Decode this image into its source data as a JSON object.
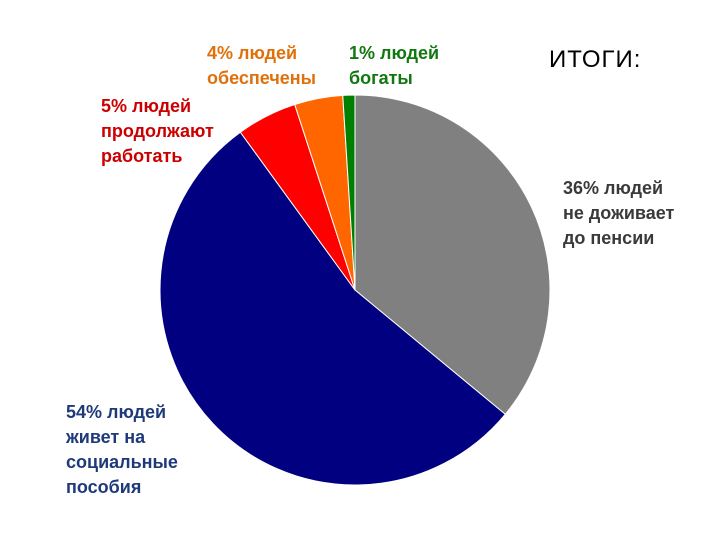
{
  "chart_data": {
    "type": "pie",
    "title": "ИТОГИ:",
    "start_angle_deg": 0,
    "direction": "clockwise",
    "slices": [
      {
        "value": 36,
        "label": "36% людей\nне доживает\nдо пенсии",
        "color": "#808080",
        "label_color": "#3a3a3a"
      },
      {
        "value": 54,
        "label": "54% людей\nживет на\nсоциальные\nпособия",
        "color": "#000080",
        "label_color": "#1f3a7a"
      },
      {
        "value": 5,
        "label": "5% людей\nпродолжают\nработать",
        "color": "#ff0000",
        "label_color": "#cc0000"
      },
      {
        "value": 4,
        "label": "4% людей\nобеспечены",
        "color": "#ff6600",
        "label_color": "#e0700a"
      },
      {
        "value": 1,
        "label": "1% людей\nбогаты",
        "color": "#008000",
        "label_color": "#117711"
      }
    ]
  }
}
